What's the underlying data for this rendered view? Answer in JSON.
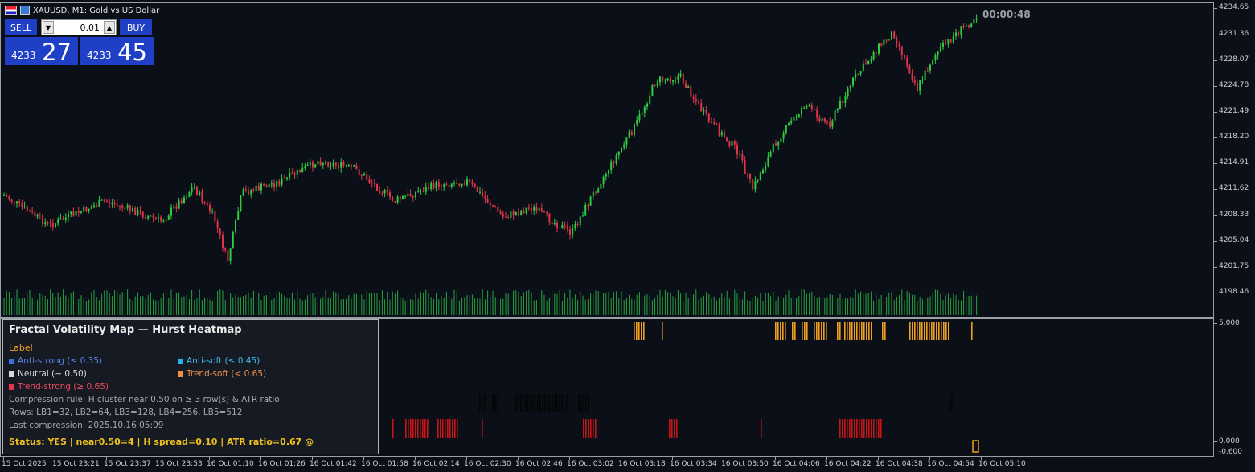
{
  "window": {
    "symbol_title": "XAUUSD, M1:  Gold vs US Dollar",
    "countdown": "00:00:48"
  },
  "trade_panel": {
    "sell_label": "SELL",
    "buy_label": "BUY",
    "lot": "0.01",
    "bid_prefix": "4233",
    "bid_big": "27",
    "ask_prefix": "4233",
    "ask_big": "45"
  },
  "price_axis": [
    "4234.65",
    "4231.36",
    "4228.07",
    "4224.78",
    "4221.49",
    "4218.20",
    "4214.91",
    "4211.62",
    "4208.33",
    "4205.04",
    "4201.75",
    "4198.46"
  ],
  "sub_axis": [
    "5.000",
    "0.000",
    "-0.600"
  ],
  "time_axis": [
    "15 Oct 2025",
    "15 Oct 23:21",
    "15 Oct 23:37",
    "15 Oct 23:53",
    "16 Oct 01:10",
    "16 Oct 01:26",
    "16 Oct 01:42",
    "16 Oct 01:58",
    "16 Oct 02:14",
    "16 Oct 02:30",
    "16 Oct 02:46",
    "16 Oct 03:02",
    "16 Oct 03:18",
    "16 Oct 03:34",
    "16 Oct 03:50",
    "16 Oct 04:06",
    "16 Oct 04:22",
    "16 Oct 04:38",
    "16 Oct 04:54",
    "16 Oct 05:10"
  ],
  "panel": {
    "title": "Fractal Volatility Map — Hurst Heatmap",
    "label_heading": "Label",
    "legend": {
      "anti_strong": "Anti-strong (≤ 0.35)",
      "anti_soft": "Anti-soft (≤ 0.45)",
      "neutral": "Neutral (~ 0.50)",
      "trend_soft": "Trend-soft (< 0.65)",
      "trend_strong": "Trend-strong (≥ 0.65)"
    },
    "compression_rule": "Compression rule: H cluster near 0.50 on ≥ 3 row(s) & ATR ratio",
    "rows": "Rows: LB1=32, LB2=64, LB3=128, LB4=256, LB5=512",
    "last_compression": "Last compression: 2025.10.16 05:09",
    "status": "Status: YES   | near0.50=4   | H spread=0.10   | ATR ratio=0.67  @"
  },
  "colors": {
    "bull": "#2ecc40",
    "bear": "#e0334a",
    "volume": "#26a641",
    "anti_strong": "#3d6fe0",
    "anti_soft": "#2fb0e8",
    "neutral": "#d8d8d8",
    "trend_soft": "#f0904a",
    "trend_strong": "#e8334a",
    "orange_bars": "#f0a020",
    "dark_red_bars": "#c81414"
  }
}
